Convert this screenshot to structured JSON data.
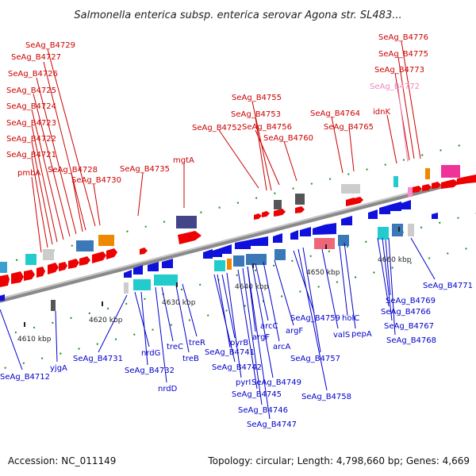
{
  "title": "Salmonella enterica subsp. enterica serovar Agona str. SL483...",
  "footer": {
    "accession": "Accession: NC_011149",
    "summary": "Topology: circular; Length: 4,798,660 bp; Genes: 4,669"
  },
  "colors": {
    "forward_label": "#cc0000",
    "reverse_label": "#0000cc",
    "faded_label": "#ee88bb",
    "backbone": "#888888"
  },
  "ticks": [
    "4610 kbp",
    "4620 kbp",
    "4630 kbp",
    "4640 kbp",
    "4650 kbp",
    "4660 kbp"
  ],
  "forward_labels": [
    "SeAg_B4729",
    "SeAg_B4727",
    "SeAg_B4726",
    "SeAg_B4725",
    "SeAg_B4724",
    "SeAg_B4723",
    "SeAg_B4722",
    "SeAg_B4721",
    "pmbA",
    "SeAg_B4728",
    "SeAg_B4730",
    "SeAg_B4735",
    "mgtA",
    "SeAg_B4755",
    "SeAg_B4753",
    "SeAg_B4752",
    "SeAg_B4756",
    "SeAg_B4760",
    "SeAg_B4764",
    "SeAg_B4765",
    "SeAg_B4776",
    "SeAg_B4775",
    "SeAg_B4773",
    "SeAg_B4772",
    "idnK"
  ],
  "reverse_labels": [
    "SeAg_B4712",
    "yjgA",
    "SeAg_B4731",
    "nrdG",
    "SeAg_B4732",
    "nrdD",
    "treC",
    "treB",
    "treR",
    "pyrB",
    "SeAg_B4741",
    "SeAg_B4742",
    "pyrI",
    "SeAg_B4745",
    "SeAg_B4746",
    "SeAg_B4747",
    "SeAg_B4749",
    "argF",
    "arcC",
    "arcA",
    "argF",
    "SeAg_B4759",
    "SeAg_B4757",
    "SeAg_B4758",
    "valS",
    "holC",
    "pepA",
    "SeAg_B4766",
    "SeAg_B4767",
    "SeAg_B4768",
    "SeAg_B4769",
    "SeAg_B4771"
  ]
}
